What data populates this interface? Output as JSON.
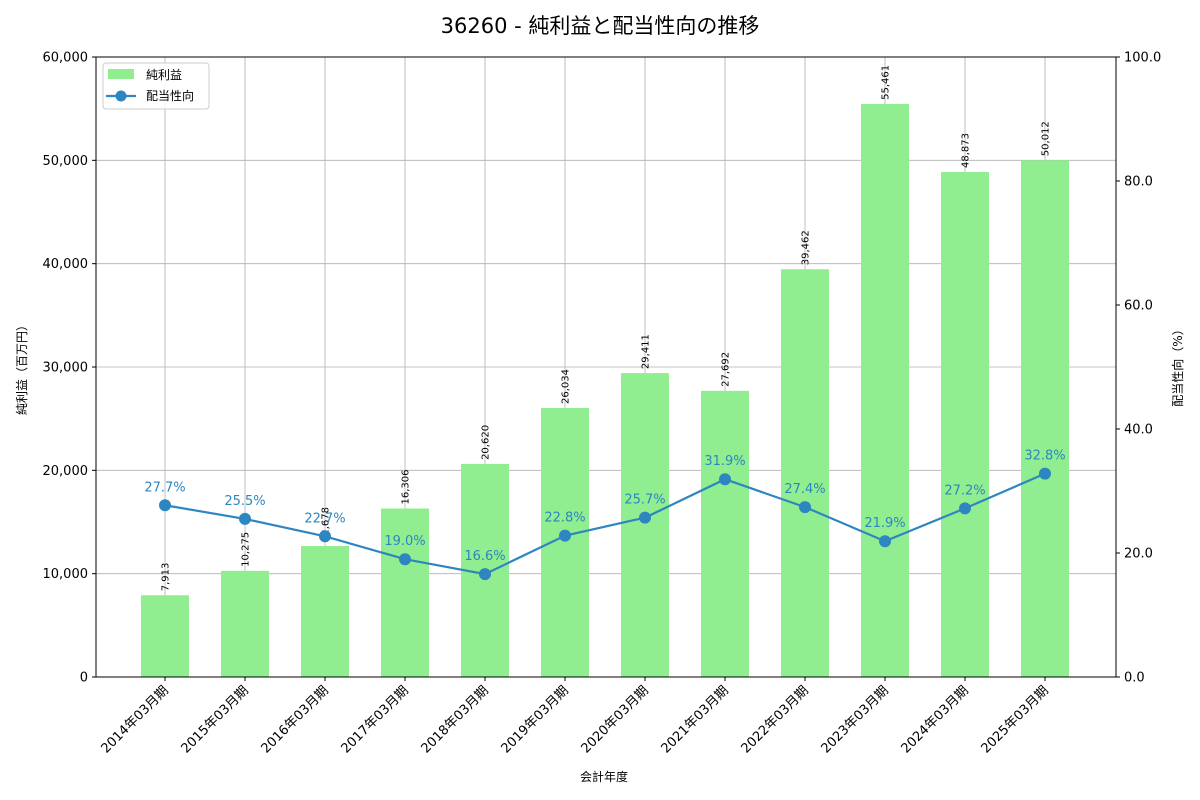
{
  "chart_data": {
    "type": "bar+line",
    "title": "36260 - 純利益と配当性向の推移",
    "xlabel": "会計年度",
    "ylabel": "純利益（百万円）",
    "y2label": "配当性向（%）",
    "categories": [
      "2014年03月期",
      "2015年03月期",
      "2016年03月期",
      "2017年03月期",
      "2018年03月期",
      "2019年03月期",
      "2020年03月期",
      "2021年03月期",
      "2022年03月期",
      "2023年03月期",
      "2024年03月期",
      "2025年03月期"
    ],
    "series": [
      {
        "name": "純利益",
        "type": "bar",
        "axis": "left",
        "color": "#90ee90",
        "values": [
          7913,
          10275,
          12678,
          16306,
          20620,
          26034,
          29411,
          27692,
          39462,
          55461,
          48873,
          50012
        ],
        "labels": [
          "7,913",
          "10,275",
          "12,678",
          "16,306",
          "20,620",
          "26,034",
          "29,411",
          "27,692",
          "39,462",
          "55,461",
          "48,873",
          "50,012"
        ]
      },
      {
        "name": "配当性向",
        "type": "line",
        "axis": "right",
        "color": "#2e86c1",
        "values": [
          27.7,
          25.5,
          22.7,
          19.0,
          16.6,
          22.8,
          25.7,
          31.9,
          27.4,
          21.9,
          27.2,
          32.8
        ],
        "labels": [
          "27.7%",
          "25.5%",
          "22.7%",
          "19.0%",
          "16.6%",
          "22.8%",
          "25.7%",
          "31.9%",
          "27.4%",
          "21.9%",
          "27.2%",
          "32.8%"
        ]
      }
    ],
    "ylim": [
      0,
      60000
    ],
    "y2lim": [
      0,
      100
    ],
    "yticks": [
      "0",
      "10,000",
      "20,000",
      "30,000",
      "40,000",
      "50,000",
      "60,000"
    ],
    "y2ticks": [
      "0.0",
      "20.0",
      "40.0",
      "60.0",
      "80.0",
      "100.0"
    ],
    "grid": true,
    "legend_position": "upper left"
  }
}
